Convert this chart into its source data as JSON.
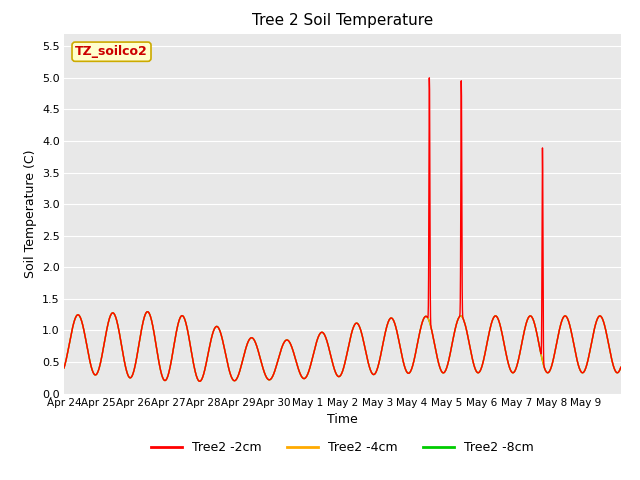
{
  "title": "Tree 2 Soil Temperature",
  "xlabel": "Time",
  "ylabel": "Soil Temperature (C)",
  "ylim": [
    0.0,
    5.7
  ],
  "yticks": [
    0.0,
    0.5,
    1.0,
    1.5,
    2.0,
    2.5,
    3.0,
    3.5,
    4.0,
    4.5,
    5.0,
    5.5
  ],
  "background_color": "#e8e8e8",
  "annotation_text": "TZ_soilco2",
  "annotation_color": "#cc0000",
  "annotation_bg": "#ffffcc",
  "annotation_border": "#ccaa00",
  "legend_entries": [
    "Tree2 -2cm",
    "Tree2 -4cm",
    "Tree2 -8cm"
  ],
  "legend_colors": [
    "#ff0000",
    "#ffaa00",
    "#00cc00"
  ],
  "xtick_labels": [
    "Apr 24",
    "Apr 25",
    "Apr 26",
    "Apr 27",
    "Apr 28",
    "Apr 29",
    "Apr 30",
    "May 1",
    "May 2",
    "May 3",
    "May 4",
    "May 5",
    "May 6",
    "May 7",
    "May 8",
    "May 9"
  ],
  "green_color": "#00cc00",
  "red_color": "#ff0000",
  "orange_color": "#ffaa00",
  "fig_bg": "#ffffff",
  "n_days": 16,
  "spike1_day": 10,
  "spike1_hour": 12,
  "spike1_val": 5.07,
  "spike2_day": 11,
  "spike2_hour": 10,
  "spike2_val": 5.0,
  "spike3_day": 13,
  "spike3_hour": 18,
  "spike3_val": 3.9
}
